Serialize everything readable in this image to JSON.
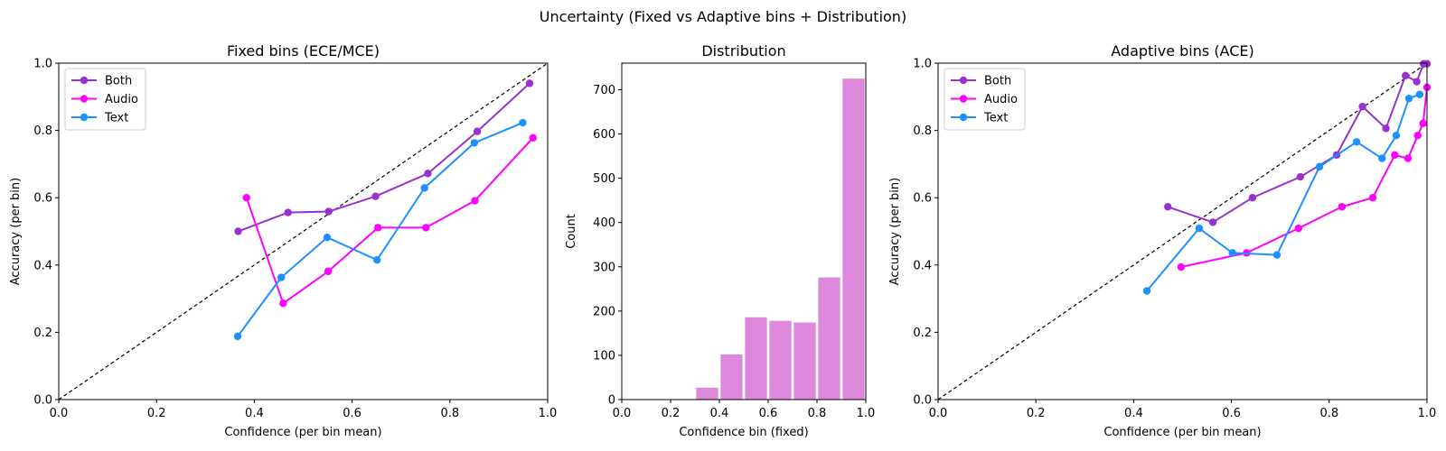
{
  "figure": {
    "suptitle": "Uncertainty (Fixed vs Adaptive bins + Distribution)"
  },
  "colors": {
    "Both": "#9932cc",
    "Audio": "#ff00ff",
    "Text": "#1e90ff",
    "hist": "#dd88dd",
    "diagonal": "#000000"
  },
  "chart_data": [
    {
      "type": "line",
      "title": "Fixed bins (ECE/MCE)",
      "xlabel": "Confidence (per bin mean)",
      "ylabel": "Accuracy (per bin)",
      "xlim": [
        0,
        1
      ],
      "ylim": [
        0,
        1
      ],
      "xticks": [
        "0.0",
        "0.2",
        "0.4",
        "0.6",
        "0.8",
        "1.0"
      ],
      "yticks": [
        "0.0",
        "0.2",
        "0.4",
        "0.6",
        "0.8",
        "1.0"
      ],
      "legend_position": "upper-left",
      "reference_line": "y = x (dashed)",
      "series": [
        {
          "name": "Both",
          "x": [
            0.367,
            0.469,
            0.552,
            0.648,
            0.755,
            0.856,
            0.963
          ],
          "y": [
            0.5,
            0.556,
            0.559,
            0.604,
            0.672,
            0.797,
            0.94
          ]
        },
        {
          "name": "Audio",
          "x": [
            0.384,
            0.459,
            0.551,
            0.653,
            0.751,
            0.851,
            0.97
          ],
          "y": [
            0.6,
            0.286,
            0.381,
            0.511,
            0.511,
            0.591,
            0.778
          ]
        },
        {
          "name": "Text",
          "x": [
            0.366,
            0.455,
            0.549,
            0.651,
            0.748,
            0.85,
            0.949
          ],
          "y": [
            0.188,
            0.363,
            0.482,
            0.415,
            0.629,
            0.763,
            0.823
          ]
        }
      ]
    },
    {
      "type": "bar",
      "title": "Distribution",
      "xlabel": "Confidence bin (fixed)",
      "ylabel": "Count",
      "xlim": [
        0,
        1
      ],
      "ylim": [
        0,
        760
      ],
      "xticks": [
        "0.0",
        "0.2",
        "0.4",
        "0.6",
        "0.8",
        "1.0"
      ],
      "yticks": [
        "0",
        "100",
        "200",
        "300",
        "400",
        "500",
        "600",
        "700"
      ],
      "bin_edges": [
        0.3,
        0.4,
        0.5,
        0.6,
        0.7,
        0.8,
        0.9,
        1.0
      ],
      "values": [
        27,
        102,
        186,
        178,
        174,
        276,
        725
      ]
    },
    {
      "type": "line",
      "title": "Adaptive bins (ACE)",
      "xlabel": "Confidence (per bin mean)",
      "ylabel": "Accuracy (per bin)",
      "xlim": [
        0,
        1
      ],
      "ylim": [
        0,
        1
      ],
      "xticks": [
        "0.0",
        "0.2",
        "0.4",
        "0.6",
        "0.8",
        "1.0"
      ],
      "yticks": [
        "0.0",
        "0.2",
        "0.4",
        "0.6",
        "0.8",
        "1.0"
      ],
      "legend_position": "upper-left",
      "reference_line": "y = x (dashed)",
      "series": [
        {
          "name": "Both",
          "x": [
            0.47,
            0.562,
            0.643,
            0.741,
            0.815,
            0.868,
            0.916,
            0.956,
            0.979,
            0.993,
            1.0
          ],
          "y": [
            0.573,
            0.527,
            0.6,
            0.662,
            0.727,
            0.871,
            0.806,
            0.963,
            0.945,
            0.998,
            0.998
          ]
        },
        {
          "name": "Audio",
          "x": [
            0.497,
            0.631,
            0.737,
            0.826,
            0.889,
            0.934,
            0.961,
            0.981,
            0.992,
            1.0
          ],
          "y": [
            0.394,
            0.436,
            0.509,
            0.573,
            0.6,
            0.727,
            0.717,
            0.785,
            0.821,
            0.928
          ]
        },
        {
          "name": "Text",
          "x": [
            0.427,
            0.534,
            0.602,
            0.693,
            0.78,
            0.856,
            0.908,
            0.937,
            0.963,
            0.985
          ],
          "y": [
            0.323,
            0.509,
            0.436,
            0.43,
            0.692,
            0.766,
            0.717,
            0.785,
            0.895,
            0.907
          ]
        }
      ]
    }
  ]
}
